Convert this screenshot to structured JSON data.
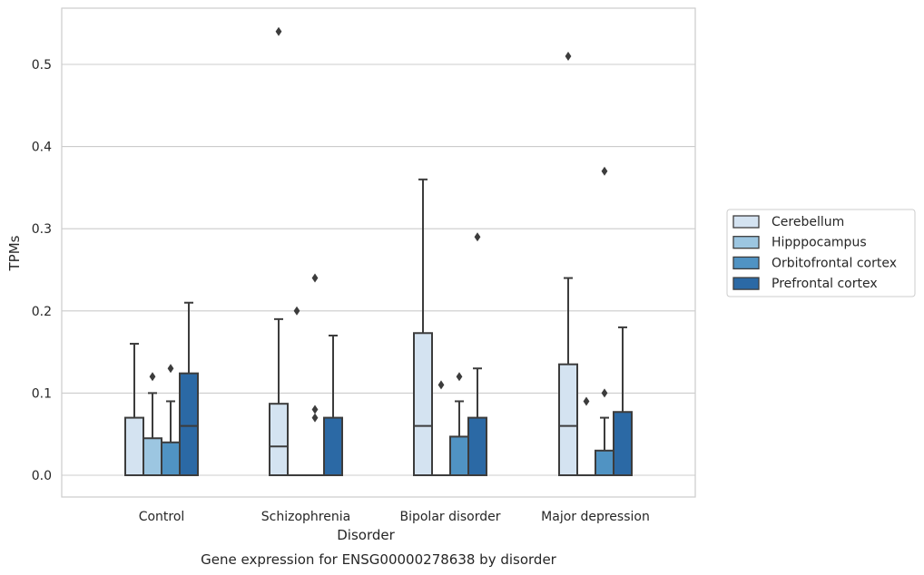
{
  "chart_data": {
    "type": "box",
    "title": "",
    "caption": "Gene expression for ENSG00000278638 by disorder",
    "xlabel": "Disorder",
    "ylabel": "TPMs",
    "ylim": [
      -0.026,
      0.57
    ],
    "yticks": [
      0.0,
      0.1,
      0.2,
      0.3,
      0.4,
      0.5
    ],
    "ytick_labels": [
      "0.0",
      "0.1",
      "0.2",
      "0.3",
      "0.4",
      "0.5"
    ],
    "grid": "horizontal",
    "legend_position": "right",
    "categories": [
      "Control",
      "Schizophrenia",
      "Bipolar disorder",
      "Major depression"
    ],
    "series": [
      {
        "name": "Cerebellum",
        "color": "#d4e3f1",
        "boxes": [
          {
            "whislo": 0.0,
            "q1": 0.0,
            "med": 0.0,
            "q3": 0.07,
            "whishi": 0.16,
            "fliers": []
          },
          {
            "whislo": 0.0,
            "q1": 0.0,
            "med": 0.035,
            "q3": 0.087,
            "whishi": 0.19,
            "fliers": [
              0.54
            ]
          },
          {
            "whislo": 0.0,
            "q1": 0.0,
            "med": 0.06,
            "q3": 0.173,
            "whishi": 0.36,
            "fliers": []
          },
          {
            "whislo": 0.0,
            "q1": 0.0,
            "med": 0.06,
            "q3": 0.135,
            "whishi": 0.24,
            "fliers": [
              0.51
            ]
          }
        ]
      },
      {
        "name": "Hipppocampus",
        "color": "#9cc6e1",
        "boxes": [
          {
            "whislo": 0.0,
            "q1": 0.0,
            "med": 0.0,
            "q3": 0.045,
            "whishi": 0.1,
            "fliers": [
              0.12
            ]
          },
          {
            "whislo": 0.0,
            "q1": 0.0,
            "med": 0.0,
            "q3": 0.0,
            "whishi": 0.0,
            "fliers": [
              0.2
            ]
          },
          {
            "whislo": 0.0,
            "q1": 0.0,
            "med": 0.0,
            "q3": 0.0,
            "whishi": 0.0,
            "fliers": [
              0.11
            ]
          },
          {
            "whislo": 0.0,
            "q1": 0.0,
            "med": 0.0,
            "q3": 0.0,
            "whishi": 0.0,
            "fliers": [
              0.09
            ]
          }
        ]
      },
      {
        "name": "Orbitofrontal cortex",
        "color": "#5093c3",
        "boxes": [
          {
            "whislo": 0.0,
            "q1": 0.0,
            "med": 0.0,
            "q3": 0.04,
            "whishi": 0.09,
            "fliers": [
              0.13
            ]
          },
          {
            "whislo": 0.0,
            "q1": 0.0,
            "med": 0.0,
            "q3": 0.0,
            "whishi": 0.0,
            "fliers": [
              0.07,
              0.08,
              0.24
            ]
          },
          {
            "whislo": 0.0,
            "q1": 0.0,
            "med": 0.0,
            "q3": 0.047,
            "whishi": 0.09,
            "fliers": [
              0.12
            ]
          },
          {
            "whislo": 0.0,
            "q1": 0.0,
            "med": 0.0,
            "q3": 0.03,
            "whishi": 0.07,
            "fliers": [
              0.1,
              0.37
            ]
          }
        ]
      },
      {
        "name": "Prefrontal cortex",
        "color": "#2b69a5",
        "boxes": [
          {
            "whislo": 0.0,
            "q1": 0.0,
            "med": 0.06,
            "q3": 0.124,
            "whishi": 0.21,
            "fliers": []
          },
          {
            "whislo": 0.0,
            "q1": 0.0,
            "med": 0.0,
            "q3": 0.07,
            "whishi": 0.17,
            "fliers": []
          },
          {
            "whislo": 0.0,
            "q1": 0.0,
            "med": 0.0,
            "q3": 0.07,
            "whishi": 0.13,
            "fliers": [
              0.29
            ]
          },
          {
            "whislo": 0.0,
            "q1": 0.0,
            "med": 0.0,
            "q3": 0.077,
            "whishi": 0.18,
            "fliers": []
          }
        ]
      }
    ]
  }
}
